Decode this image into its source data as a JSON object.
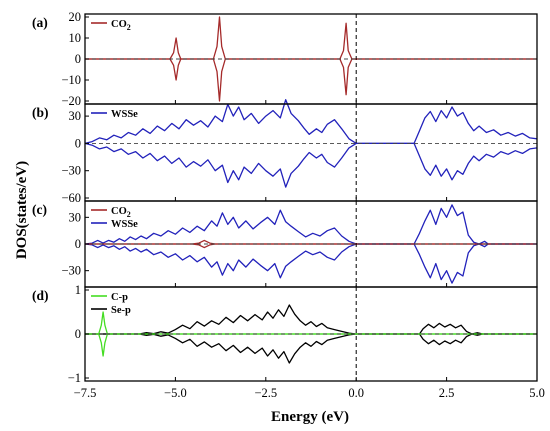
{
  "chart_data": {
    "type": "line",
    "xlabel": "Energy (eV)",
    "ylabel": "DOS(states/eV)",
    "xlim": [
      -7.5,
      5.0
    ],
    "xticks": [
      "−7.5",
      "−5.0",
      "−2.5",
      "0.0",
      "2.5",
      "5.0"
    ],
    "fermi_level": 0.0,
    "panels": [
      {
        "label": "(a)",
        "ylim": [
          -20,
          20
        ],
        "yticks": [
          "20",
          "10",
          "0",
          "−10",
          "−20"
        ],
        "legend": [
          {
            "name": "CO",
            "sub": "2",
            "color": "#a52a2a"
          }
        ],
        "series": [
          {
            "name": "CO2",
            "color": "#a52a2a",
            "mirrored": true,
            "points": [
              [
                -7.5,
                0
              ],
              [
                -5.15,
                0
              ],
              [
                -5.05,
                3
              ],
              [
                -4.98,
                10
              ],
              [
                -4.92,
                3
              ],
              [
                -4.85,
                0
              ],
              [
                -3.95,
                0
              ],
              [
                -3.85,
                6
              ],
              [
                -3.78,
                20
              ],
              [
                -3.72,
                6
              ],
              [
                -3.62,
                0
              ],
              [
                -0.45,
                0
              ],
              [
                -0.35,
                4
              ],
              [
                -0.28,
                17
              ],
              [
                -0.22,
                4
              ],
              [
                -0.12,
                0
              ],
              [
                5.0,
                0
              ]
            ]
          }
        ]
      },
      {
        "label": "(b)",
        "ylim": [
          -60,
          40
        ],
        "yticks": [
          "30",
          "0",
          "−30",
          "−60"
        ],
        "legend": [
          {
            "name": "WSSe",
            "sub": "",
            "color": "#2222bb"
          }
        ],
        "series": [
          {
            "name": "WSSe",
            "color": "#2222bb",
            "mirrored": true,
            "points": [
              [
                -7.5,
                0
              ],
              [
                -7.3,
                2
              ],
              [
                -7.1,
                6
              ],
              [
                -6.9,
                4
              ],
              [
                -6.7,
                9
              ],
              [
                -6.5,
                6
              ],
              [
                -6.3,
                12
              ],
              [
                -6.1,
                9
              ],
              [
                -5.9,
                16
              ],
              [
                -5.7,
                11
              ],
              [
                -5.5,
                19
              ],
              [
                -5.3,
                14
              ],
              [
                -5.1,
                22
              ],
              [
                -4.9,
                16
              ],
              [
                -4.7,
                26
              ],
              [
                -4.5,
                20
              ],
              [
                -4.3,
                25
              ],
              [
                -4.1,
                18
              ],
              [
                -3.9,
                30
              ],
              [
                -3.7,
                24
              ],
              [
                -3.55,
                43
              ],
              [
                -3.4,
                30
              ],
              [
                -3.25,
                40
              ],
              [
                -3.1,
                26
              ],
              [
                -2.9,
                33
              ],
              [
                -2.7,
                22
              ],
              [
                -2.5,
                30
              ],
              [
                -2.3,
                36
              ],
              [
                -2.1,
                28
              ],
              [
                -1.95,
                48
              ],
              [
                -1.8,
                33
              ],
              [
                -1.6,
                25
              ],
              [
                -1.45,
                17
              ],
              [
                -1.3,
                10
              ],
              [
                -1.1,
                16
              ],
              [
                -0.95,
                12
              ],
              [
                -0.8,
                21
              ],
              [
                -0.6,
                26
              ],
              [
                -0.4,
                16
              ],
              [
                -0.2,
                5
              ],
              [
                0.0,
                0
              ],
              [
                1.6,
                0
              ],
              [
                1.75,
                14
              ],
              [
                1.9,
                28
              ],
              [
                2.05,
                35
              ],
              [
                2.2,
                24
              ],
              [
                2.35,
                36
              ],
              [
                2.5,
                28
              ],
              [
                2.65,
                40
              ],
              [
                2.8,
                30
              ],
              [
                2.95,
                34
              ],
              [
                3.1,
                22
              ],
              [
                3.25,
                14
              ],
              [
                3.4,
                19
              ],
              [
                3.6,
                12
              ],
              [
                3.8,
                15
              ],
              [
                4.0,
                9
              ],
              [
                4.2,
                12
              ],
              [
                4.4,
                8
              ],
              [
                4.6,
                11
              ],
              [
                4.8,
                6
              ],
              [
                5.0,
                5
              ]
            ]
          }
        ]
      },
      {
        "label": "(c)",
        "ylim": [
          -45,
          45
        ],
        "yticks": [
          "30",
          "0",
          "−30"
        ],
        "legend": [
          {
            "name": "CO",
            "sub": "2",
            "color": "#a52a2a"
          },
          {
            "name": "WSSe",
            "sub": "",
            "color": "#2222bb"
          }
        ],
        "series": [
          {
            "name": "WSSe",
            "color": "#2222bb",
            "mirrored": true,
            "points": [
              [
                -7.5,
                0
              ],
              [
                -7.3,
                1
              ],
              [
                -7.15,
                4
              ],
              [
                -7.0,
                1
              ],
              [
                -6.85,
                4
              ],
              [
                -6.7,
                2
              ],
              [
                -6.55,
                6
              ],
              [
                -6.4,
                3
              ],
              [
                -6.25,
                8
              ],
              [
                -6.1,
                5
              ],
              [
                -5.95,
                9
              ],
              [
                -5.8,
                6
              ],
              [
                -5.6,
                12
              ],
              [
                -5.4,
                9
              ],
              [
                -5.2,
                15
              ],
              [
                -5.0,
                11
              ],
              [
                -4.8,
                18
              ],
              [
                -4.6,
                13
              ],
              [
                -4.4,
                20
              ],
              [
                -4.2,
                15
              ],
              [
                -4.0,
                26
              ],
              [
                -3.85,
                20
              ],
              [
                -3.7,
                35
              ],
              [
                -3.55,
                22
              ],
              [
                -3.4,
                30
              ],
              [
                -3.25,
                18
              ],
              [
                -3.05,
                26
              ],
              [
                -2.85,
                17
              ],
              [
                -2.65,
                24
              ],
              [
                -2.45,
                30
              ],
              [
                -2.25,
                22
              ],
              [
                -2.1,
                38
              ],
              [
                -1.95,
                25
              ],
              [
                -1.8,
                20
              ],
              [
                -1.6,
                14
              ],
              [
                -1.4,
                8
              ],
              [
                -1.2,
                12
              ],
              [
                -1.0,
                9
              ],
              [
                -0.8,
                15
              ],
              [
                -0.6,
                18
              ],
              [
                -0.4,
                9
              ],
              [
                -0.2,
                3
              ],
              [
                0.0,
                0
              ],
              [
                1.6,
                0
              ],
              [
                1.75,
                12
              ],
              [
                1.9,
                26
              ],
              [
                2.05,
                38
              ],
              [
                2.2,
                22
              ],
              [
                2.35,
                40
              ],
              [
                2.5,
                30
              ],
              [
                2.65,
                44
              ],
              [
                2.8,
                32
              ],
              [
                2.95,
                36
              ],
              [
                3.1,
                10
              ],
              [
                3.25,
                2
              ],
              [
                3.4,
                0
              ],
              [
                3.55,
                3
              ],
              [
                3.65,
                0
              ],
              [
                5.0,
                0
              ]
            ]
          },
          {
            "name": "CO2",
            "color": "#a52a2a",
            "mirrored": true,
            "points": [
              [
                -7.5,
                0
              ],
              [
                -4.55,
                0
              ],
              [
                -4.35,
                1
              ],
              [
                -4.2,
                4
              ],
              [
                -4.05,
                1
              ],
              [
                -3.9,
                0
              ],
              [
                5.0,
                0
              ]
            ]
          }
        ]
      },
      {
        "label": "(d)",
        "ylim": [
          -1,
          1
        ],
        "yticks": [
          "1",
          "0",
          "−1"
        ],
        "legend": [
          {
            "name": "C-p",
            "sub": "",
            "color": "#44dd22"
          },
          {
            "name": "Se-p",
            "sub": "",
            "color": "#000000"
          }
        ],
        "series": [
          {
            "name": "Se-p",
            "color": "#000000",
            "mirrored": true,
            "points": [
              [
                -7.5,
                0
              ],
              [
                -6.0,
                0
              ],
              [
                -5.8,
                0.03
              ],
              [
                -5.6,
                0.01
              ],
              [
                -5.4,
                0.05
              ],
              [
                -5.2,
                0.02
              ],
              [
                -5.0,
                0.1
              ],
              [
                -4.8,
                0.2
              ],
              [
                -4.6,
                0.12
              ],
              [
                -4.4,
                0.28
              ],
              [
                -4.2,
                0.18
              ],
              [
                -4.0,
                0.3
              ],
              [
                -3.8,
                0.22
              ],
              [
                -3.6,
                0.38
              ],
              [
                -3.4,
                0.26
              ],
              [
                -3.2,
                0.42
              ],
              [
                -3.0,
                0.3
              ],
              [
                -2.8,
                0.44
              ],
              [
                -2.6,
                0.32
              ],
              [
                -2.45,
                0.5
              ],
              [
                -2.3,
                0.36
              ],
              [
                -2.15,
                0.55
              ],
              [
                -2.0,
                0.4
              ],
              [
                -1.85,
                0.66
              ],
              [
                -1.7,
                0.45
              ],
              [
                -1.55,
                0.3
              ],
              [
                -1.4,
                0.2
              ],
              [
                -1.25,
                0.28
              ],
              [
                -1.1,
                0.17
              ],
              [
                -0.95,
                0.24
              ],
              [
                -0.8,
                0.14
              ],
              [
                -0.6,
                0.1
              ],
              [
                -0.4,
                0.06
              ],
              [
                -0.2,
                0.02
              ],
              [
                0.0,
                0
              ],
              [
                1.75,
                0
              ],
              [
                1.85,
                0.12
              ],
              [
                2.0,
                0.22
              ],
              [
                2.15,
                0.14
              ],
              [
                2.3,
                0.24
              ],
              [
                2.45,
                0.16
              ],
              [
                2.6,
                0.22
              ],
              [
                2.75,
                0.14
              ],
              [
                2.9,
                0.2
              ],
              [
                3.05,
                0.06
              ],
              [
                3.2,
                0
              ],
              [
                3.35,
                0.03
              ],
              [
                3.5,
                0
              ],
              [
                5.0,
                0
              ]
            ]
          },
          {
            "name": "C-p",
            "color": "#44dd22",
            "mirrored": true,
            "points": [
              [
                -7.5,
                0
              ],
              [
                -7.12,
                0
              ],
              [
                -7.05,
                0.2
              ],
              [
                -7.0,
                0.5
              ],
              [
                -6.95,
                0.2
              ],
              [
                -6.88,
                0
              ],
              [
                5.0,
                0
              ]
            ]
          }
        ]
      }
    ]
  }
}
